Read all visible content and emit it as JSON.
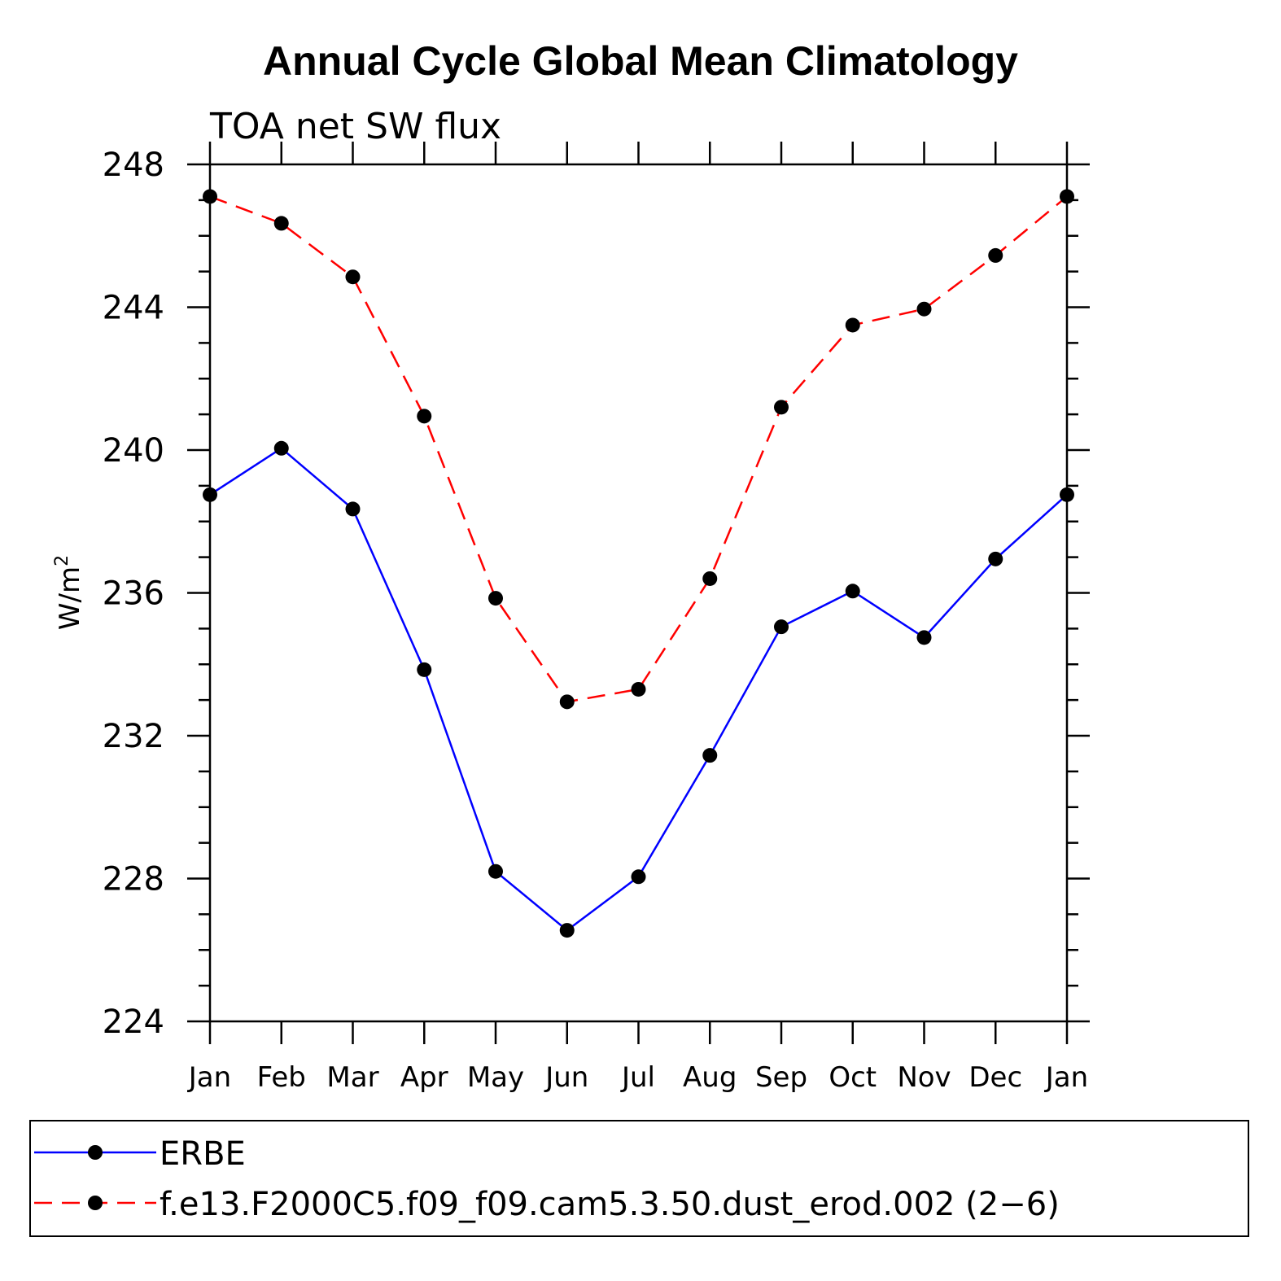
{
  "chart_data": {
    "type": "line",
    "title": "Annual Cycle Global Mean Climatology",
    "subtitle": "TOA net SW flux",
    "ylabel": "W/m",
    "ylabel_superscript": "2",
    "ylim": [
      224,
      248
    ],
    "yticks": [
      "224",
      "228",
      "232",
      "236",
      "240",
      "244",
      "248"
    ],
    "categories": [
      "Jan",
      "Feb",
      "Mar",
      "Apr",
      "May",
      "Jun",
      "Jul",
      "Aug",
      "Sep",
      "Oct",
      "Nov",
      "Dec",
      "Jan"
    ],
    "series": [
      {
        "name": "ERBE",
        "color": "#0000ff",
        "dash": "solid",
        "values": [
          238.75,
          240.05,
          238.35,
          233.85,
          228.2,
          226.55,
          228.05,
          231.45,
          235.05,
          236.05,
          234.75,
          236.95,
          238.75
        ]
      },
      {
        "name": "f.e13.F2000C5.f09_f09.cam5.3.50.dust_erod.002 (2−6)",
        "color": "#ff0000",
        "dash": "dashed",
        "values": [
          247.1,
          246.35,
          244.85,
          240.95,
          235.85,
          232.95,
          233.3,
          236.4,
          241.2,
          243.5,
          243.95,
          245.45,
          247.1
        ]
      }
    ],
    "legend_position": "bottom"
  }
}
